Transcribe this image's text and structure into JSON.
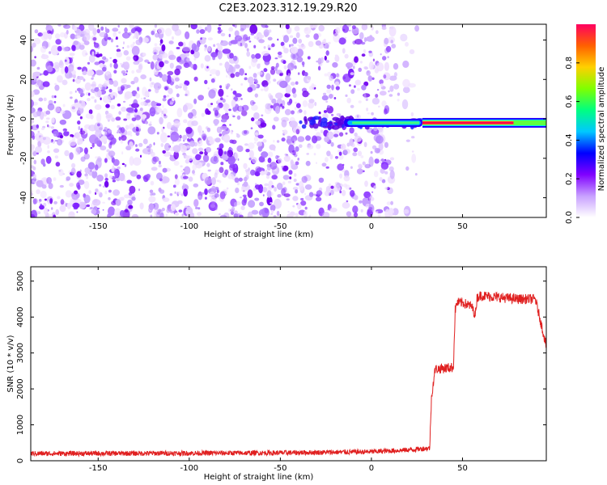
{
  "title": "C2E3.2023.312.19.29.R20",
  "chart_data": [
    {
      "type": "heatmap",
      "xlabel": "Height of straight line (km)",
      "ylabel": "Frequency (Hz)",
      "xlim": [
        -187,
        96
      ],
      "ylim": [
        -50,
        48
      ],
      "xticks": [
        -150,
        -100,
        -50,
        0,
        50
      ],
      "yticks": [
        -40,
        -20,
        0,
        20,
        40
      ],
      "colorbar": {
        "label": "Normalized spectral amplitude",
        "range": [
          0,
          1
        ],
        "ticks": [
          0.0,
          0.2,
          0.4,
          0.6,
          0.8
        ],
        "colors": [
          "#ffffff",
          "#c8a0ff",
          "#8000ff",
          "#0000ff",
          "#00c8ff",
          "#00ff80",
          "#80ff00",
          "#ffd000",
          "#ff6000",
          "#ff0060"
        ]
      },
      "signal": {
        "onset_km": -40,
        "strong_from_km": 28,
        "strong_to_km": 78,
        "center_hz": -2
      },
      "noise_fade_km": [
        10,
        28
      ]
    },
    {
      "type": "line",
      "xlabel": "Height of straight line (km)",
      "ylabel": "SNR (10 * v/v)",
      "xlim": [
        -187,
        96
      ],
      "ylim": [
        0,
        5400
      ],
      "xticks": [
        -150,
        -100,
        -50,
        0,
        50
      ],
      "yticks": [
        0,
        1000,
        2000,
        3000,
        4000,
        5000
      ],
      "color": "#e02020",
      "series": [
        {
          "x": [
            -187,
            -100,
            -50,
            0,
            20,
            32,
            33,
            35,
            45,
            46,
            47,
            50,
            55,
            57,
            58,
            60,
            70,
            80,
            90,
            96
          ],
          "values": [
            200,
            210,
            220,
            250,
            300,
            350,
            1800,
            2550,
            2600,
            4200,
            4400,
            4400,
            4300,
            4050,
            4550,
            4600,
            4550,
            4500,
            4500,
            3200
          ]
        }
      ]
    }
  ]
}
